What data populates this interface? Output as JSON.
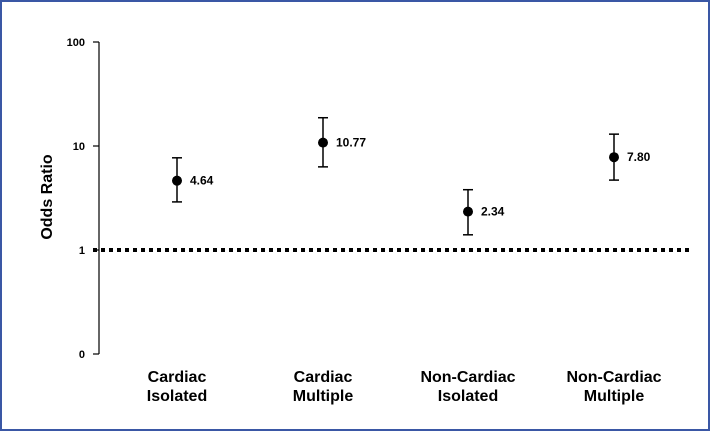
{
  "chart_data": {
    "type": "scatter",
    "yscale": "log",
    "ylabel": "Odds Ratio",
    "yticks": [
      {
        "value": 0.1,
        "label": "0"
      },
      {
        "value": 1,
        "label": "1"
      },
      {
        "value": 10,
        "label": "10"
      },
      {
        "value": 100,
        "label": "100"
      }
    ],
    "ylim": [
      0.1,
      100
    ],
    "reference_line": {
      "value": 1,
      "style": "dotted"
    },
    "categories": [
      [
        "Cardiac",
        "Isolated"
      ],
      [
        "Cardiac",
        "Multiple"
      ],
      [
        "Non-Cardiac",
        "Isolated"
      ],
      [
        "Non-Cardiac",
        "Multiple"
      ]
    ],
    "points": [
      {
        "value": 4.64,
        "low": 2.9,
        "high": 7.7,
        "label": "4.64"
      },
      {
        "value": 10.77,
        "low": 6.3,
        "high": 18.7,
        "label": "10.77"
      },
      {
        "value": 2.34,
        "low": 1.4,
        "high": 3.8,
        "label": "2.34"
      },
      {
        "value": 7.8,
        "low": 4.7,
        "high": 13.0,
        "label": "7.80"
      }
    ],
    "colors": {
      "frame": "#3a57a5",
      "marks": "#000000"
    }
  }
}
